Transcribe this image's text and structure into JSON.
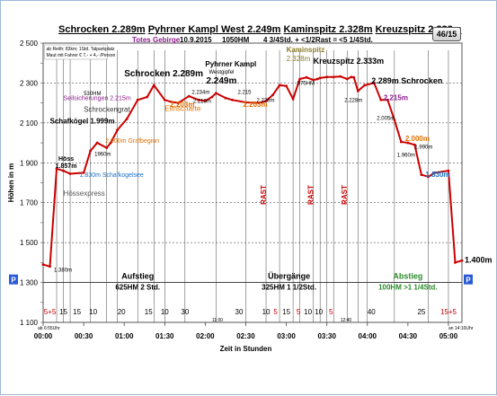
{
  "header": {
    "title_parts": [
      "Schrocken 2.289m",
      "Pyhrner Kampl West 2.249m",
      "Kaminspitz 2.328m",
      "Kreuzspitz 2.333m"
    ],
    "group": "Totes Gebirge",
    "date": "10.9.2015",
    "ascent": "1050HM",
    "summary": "4 3/4Std. + <1/2Rast = <5 1/4Std.",
    "page": "46/15"
  },
  "notes": [
    "ab Reith: 83km; 1Std. Talparkplatz",
    "Maut mit Fahrer € 7,- + 4,- /Person"
  ],
  "colors": {
    "line": "#cc0000",
    "descent_line": "#8b1a8b",
    "orange": "#e07000",
    "blue": "#1a6fc4",
    "green": "#2a8a2a",
    "purple": "#8b1a8b",
    "grid": "#c8c8c8"
  },
  "chart_data": {
    "type": "line",
    "ylabel": "Höhen in m",
    "xlabel": "Zeit in Stunden",
    "ylim": [
      1100,
      2500
    ],
    "xlim": [
      0,
      310
    ],
    "yticks": [
      "2 500",
      "2 300",
      "2 100",
      "1 900",
      "1 700",
      "1 500",
      "1 300",
      "1 100"
    ],
    "xticks": [
      "00:00",
      "00:30",
      "01:00",
      "01:30",
      "02:00",
      "02:30",
      "03:00",
      "03:30",
      "04:00",
      "04:30",
      "05:00"
    ],
    "x": [
      0,
      5,
      10,
      15,
      20,
      30,
      35,
      40,
      47,
      50,
      55,
      62,
      70,
      77,
      82,
      90,
      95,
      100,
      108,
      115,
      120,
      125,
      128,
      135,
      140,
      150,
      160,
      165,
      170,
      175,
      180,
      185,
      190,
      195,
      200,
      203,
      205,
      210,
      215,
      220,
      225,
      228,
      230,
      233,
      238,
      245,
      250,
      255,
      260,
      265,
      270,
      275,
      280,
      285,
      290,
      300,
      305,
      310
    ],
    "y": [
      1390,
      1380,
      1870,
      1860,
      1845,
      1850,
      1960,
      2000,
      1975,
      2000,
      2065,
      2120,
      2215,
      2230,
      2289,
      2215,
      2205,
      2200,
      2234,
      2215,
      2210,
      2230,
      2249,
      2225,
      2215,
      2203,
      2200,
      2210,
      2240,
      2289,
      2285,
      2220,
      2320,
      2328,
      2315,
      2320,
      2325,
      2330,
      2330,
      2333,
      2320,
      2330,
      2328,
      2260,
      2289,
      2300,
      2215,
      2215,
      2115,
      2005,
      2000,
      1990,
      1840,
      1830,
      1850,
      1860,
      1400,
      1410
    ],
    "descent_range": [
      233,
      310
    ],
    "elevation_labels": [
      {
        "x": 15,
        "y": 1857,
        "name": "Höss",
        "elev": "1.857m"
      },
      {
        "x": 5,
        "y": 1999,
        "name": "Schafkögel",
        "elev": "1.999m"
      },
      {
        "x": 82,
        "y": 2289,
        "name": "Schrocken",
        "elev": "2.289m"
      },
      {
        "x": 128,
        "y": 2249,
        "name": "Pyhrner Kampl",
        "sub": "Westgipfel",
        "elev": "2.249m"
      },
      {
        "x": 195,
        "y": 2328,
        "name": "Kaminspitz",
        "elev": "2.328m"
      },
      {
        "x": 220,
        "y": 2333,
        "name": "Kreuzspitz",
        "elev": "2.333m"
      },
      {
        "x": 238,
        "y": 2289,
        "name": "Schrocken",
        "elev": "2.289m"
      }
    ],
    "small_labels": [
      "1.380m",
      "1960m",
      "530HM",
      "2.234m",
      "2.210m",
      "2.215",
      "2.228m",
      "875HM",
      "2.228m",
      "2.005m",
      "1.960m",
      "1.990m",
      "1.400m"
    ],
    "annotations": [
      "Seilsicherungen 2.215m",
      "Schrockengrat",
      "2.000m Grafbeginn",
      "1.830m Schafkogelsee",
      "Hössexpress",
      "2.203m",
      "Elmscharte",
      "2.203m",
      "2.215m",
      "2.000m",
      "1.830m"
    ],
    "rast_labels": [
      "RAST",
      "RAST",
      "RAST"
    ],
    "sections": [
      {
        "title": "Aufstieg",
        "detail": "625HM 2 Std."
      },
      {
        "title": "Übergänge",
        "detail": "325HM 1 1/2Std."
      },
      {
        "title": "Abstieg",
        "detail": "100HM >1 1/4Std."
      }
    ],
    "segment_minutes": [
      "5+5",
      "15",
      "15",
      "10",
      "20",
      "15",
      "10",
      "30",
      "30",
      "10",
      "5",
      "15",
      "5",
      "10",
      "10",
      "5",
      "40",
      "25",
      "15+5"
    ],
    "time_marks": [
      "ab 6:55Uhr",
      "11:00",
      "12:40",
      "an 14:10Uhr"
    ]
  },
  "parking_label": "P",
  "end_elev": "1.400m"
}
